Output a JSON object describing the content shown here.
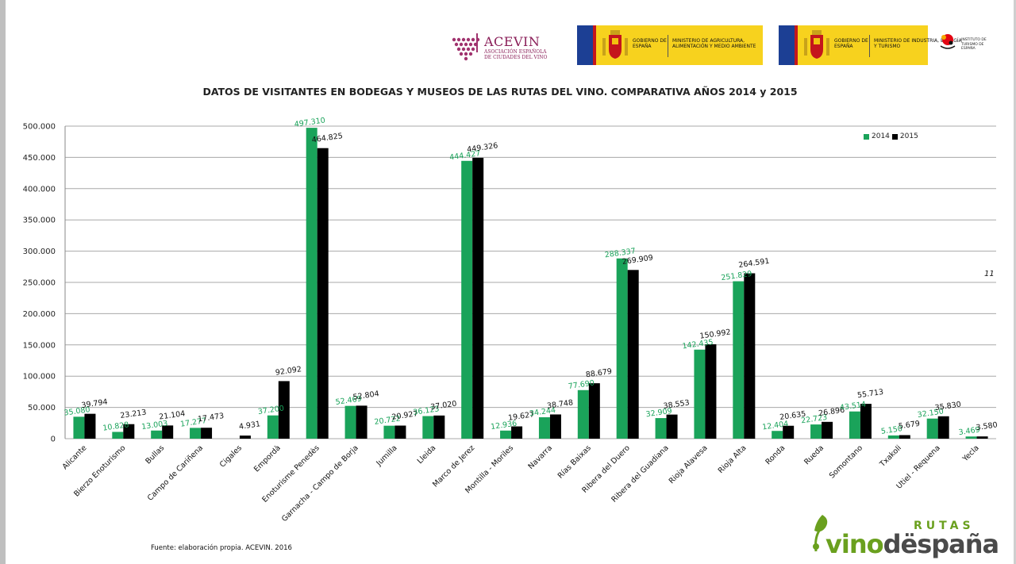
{
  "logos": {
    "acevin": {
      "name": "ACEVIN",
      "subtitle": "ASOCIACIÓN ESPAÑOLA DE CIUDADES DEL VINO"
    },
    "gov1": {
      "gov": "GOBIERNO DE ESPAÑA",
      "ministry": "MINISTERIO DE AGRICULTURA, ALIMENTACIÓN Y MEDIO AMBIENTE"
    },
    "gov2": {
      "gov": "GOBIERNO DE ESPAÑA",
      "ministry": "MINISTERIO DE INDUSTRIA, ENERGÍA Y TURISMO"
    },
    "turismo": {
      "text": "INSTITUTO DE TURISMO DE ESPAÑA",
      "mark": "España"
    },
    "rutas": {
      "top": "RUTAS",
      "main_a": "vino",
      "main_b": "dëspaña"
    }
  },
  "page_number": "11",
  "source": "Fuente: elaboración propia. ACEVIN. 2016",
  "colors": {
    "2014": "#1aa35a",
    "2015": "#000000",
    "grid": "#a8a8a8"
  },
  "chart_data": {
    "type": "bar",
    "title": "DATOS DE VISITANTES EN BODEGAS Y MUSEOS DE LAS RUTAS DEL VINO. COMPARATIVA AÑOS 2014 y 2015",
    "xlabel": "",
    "ylabel": "",
    "ylim": [
      0,
      500000
    ],
    "yticks": [
      "0",
      "50.000",
      "100.000",
      "150.000",
      "200.000",
      "250.000",
      "300.000",
      "350.000",
      "400.000",
      "450.000",
      "500.000"
    ],
    "grid": true,
    "legend_position": "top-right",
    "categories": [
      "Alicante",
      "Bierzo Enoturismo",
      "Bullas",
      "Campo de Cariñena",
      "Cigales",
      "Empordà",
      "Enoturisme Penedès",
      "Garnacha - Campo de Borja",
      "Jumilla",
      "Lleida",
      "Marco de Jerez",
      "Montilla - Moriles",
      "Navarra",
      "Rías Baixas",
      "Ribera del Duero",
      "Ribera del Guadiana",
      "Rioja Alavesa",
      "Rioja Alta",
      "Ronda",
      "Rueda",
      "Somontano",
      "Txakoli",
      "Utiel - Requena",
      "Yecla"
    ],
    "series": [
      {
        "name": "2014",
        "values": [
          35080,
          10828,
          13003,
          17277,
          null,
          37200,
          497310,
          52469,
          20722,
          36123,
          444427,
          12936,
          34244,
          77690,
          288337,
          32909,
          142435,
          251829,
          12404,
          22723,
          43514,
          5150,
          32150,
          3469
        ],
        "labels": [
          "35.080",
          "10.828",
          "13.003",
          "17.277",
          "",
          "37.200",
          "497.310",
          "52.469",
          "20.722",
          "36.123",
          "444.427",
          "12.936",
          "34.244",
          "77.690",
          "288.337",
          "32.909",
          "142.435",
          "251.829",
          "12.404",
          "22.723",
          "43.514",
          "5.150",
          "32.150",
          "3.469"
        ]
      },
      {
        "name": "2015",
        "values": [
          39794,
          23213,
          21104,
          17473,
          4931,
          92092,
          464825,
          52804,
          20927,
          37020,
          449326,
          19627,
          38748,
          88679,
          269909,
          38553,
          150992,
          264591,
          20635,
          26896,
          55713,
          5679,
          35830,
          3580
        ],
        "labels": [
          "39.794",
          "23.213",
          "21.104",
          "17.473",
          "4.931",
          "92.092",
          "464.825",
          "52.804",
          "20.927",
          "37.020",
          "449.326",
          "19.627",
          "38.748",
          "88.679",
          "269.909",
          "38.553",
          "150.992",
          "264.591",
          "20.635",
          "26.896",
          "55.713",
          "5.679",
          "35.830",
          "3.580"
        ]
      }
    ]
  }
}
